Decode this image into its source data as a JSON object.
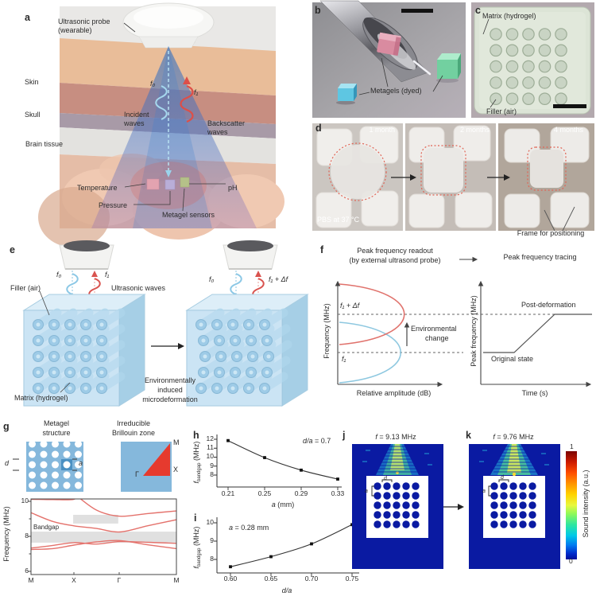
{
  "figure": {
    "panels": {
      "a": {
        "label": "a",
        "probe1": "Ultrasonic probe",
        "probe2": "(wearable)",
        "skin": "Skin",
        "skull": "Skull",
        "brain": "Brain tissue",
        "f0": "f₀",
        "f1": "f₁",
        "incident1": "Incident",
        "incident2": "waves",
        "backscatter1": "Backscatter",
        "backscatter2": "waves",
        "temperature": "Temperature",
        "pressure": "Pressure",
        "ph": "pH",
        "sensors": "Metagel sensors"
      },
      "b": {
        "label": "b",
        "metagels": "Metagels (dyed)"
      },
      "c": {
        "label": "c",
        "matrix": "Matrix (hydrogel)",
        "filler": "Filler (air)"
      },
      "d": {
        "label": "d",
        "months": [
          "1 month",
          "2 months",
          "4 months"
        ],
        "pbs": "PBS at 37 °C",
        "frame": "Frame for positioning"
      },
      "e": {
        "label": "e",
        "f0": "f₀",
        "f1": "f₁",
        "f0_2": "f₀",
        "f1df": "f₁ + Δf",
        "waves": "Ultrasonic waves",
        "filler": "Filler (air)",
        "matrix": "Matrix (hydrogel)",
        "env1": "Environmentally",
        "env2": "induced",
        "env3": "microdeformation"
      },
      "f": {
        "label": "f",
        "title1": "Peak frequency readout",
        "title2": "(by external ultrasond probe)",
        "title3": "Peak frequency tracing",
        "f1df": "f₁ + Δf",
        "f1": "f₁",
        "env1": "Environmental",
        "env2": "change",
        "ylab_left": "Frequency (MHz)",
        "xlab_left": "Relative amplitude (dB)",
        "ylab_right": "Peak frequency (MHz)",
        "xlab_right": "Time (s)",
        "post": "Post-deformation",
        "original": "Original state"
      },
      "g": {
        "label": "g",
        "t1a": "Metagel",
        "t1b": "structure",
        "t2a": "Irreducible",
        "t2b": "Brillouin zone",
        "d": "d",
        "a": "a",
        "M": "M",
        "X": "X",
        "gamma": "Γ",
        "bandgap": "Bandgap",
        "ylabel": "Frequency (MHz)",
        "yticks": [
          "10",
          "8",
          "6"
        ],
        "xticks": [
          "M",
          "X",
          "Γ",
          "M"
        ]
      },
      "h": {
        "label": "h",
        "ann_var": "d/a",
        "ann_rest": " = 0.7",
        "yticks": [
          "12",
          "11",
          "10",
          "9",
          "8"
        ],
        "xticks": [
          "0.21",
          "0.25",
          "0.29",
          "0.33"
        ],
        "xlab_var": "a",
        "xlab_rest": " (mm)",
        "ylab_f": "f",
        "ylab_sub": "bandgap",
        "ylab_rest": " (MHz)"
      },
      "i": {
        "label": "i",
        "ann_var": "a",
        "ann_rest": " = 0.28 mm",
        "yticks": [
          "10",
          "9",
          "8"
        ],
        "xticks": [
          "0.60",
          "0.65",
          "0.70",
          "0.75"
        ],
        "xlab": "d/a",
        "ylab_f": "f",
        "ylab_sub": "bandgap",
        "ylab_rest": " (MHz)"
      },
      "j": {
        "label": "j",
        "title_var": "f",
        "title_rest": " = 9.13 MHz",
        "d": "d",
        "a": "a"
      },
      "k": {
        "label": "k",
        "title_var": "f",
        "title_rest": " = 9.76 MHz",
        "d": "d",
        "a": "a"
      },
      "colorbar": {
        "max": "1",
        "min": "0",
        "label": "Sound intensity (a.u.)"
      }
    },
    "colors": {
      "band_red": "#e4726c",
      "navy": "#0a1aa2",
      "metagel_blue": "#85b8dc",
      "bz_red": "#e63a2e",
      "cone_blue": "#2f6fc0"
    }
  },
  "chart_data": [
    {
      "id": "g-band-structure",
      "type": "line",
      "panel": "g",
      "ylabel": "Frequency (MHz)",
      "ylim": [
        5.8,
        10.5
      ],
      "yticks": [
        6,
        8,
        10
      ],
      "x_path_labels": [
        "M",
        "X",
        "Γ",
        "M"
      ],
      "x_node_positions": [
        0,
        0.295,
        0.61,
        1
      ],
      "series": [
        {
          "name": "band1",
          "points": [
            [
              0,
              7.25
            ],
            [
              0.15,
              7.3
            ],
            [
              0.295,
              7.5
            ],
            [
              0.45,
              7.68
            ],
            [
              0.61,
              7.76
            ],
            [
              0.8,
              7.52
            ],
            [
              1,
              7.3
            ]
          ]
        },
        {
          "name": "band2",
          "points": [
            [
              0,
              7.33
            ],
            [
              0.15,
              7.48
            ],
            [
              0.295,
              7.64
            ],
            [
              0.45,
              7.56
            ],
            [
              0.61,
              7.7
            ],
            [
              0.8,
              7.66
            ],
            [
              1,
              7.6
            ]
          ]
        },
        {
          "name": "band3",
          "points": [
            [
              0,
              9.35
            ],
            [
              0.15,
              8.85
            ],
            [
              0.295,
              8.6
            ],
            [
              0.45,
              8.45
            ],
            [
              0.61,
              8.25
            ],
            [
              0.8,
              8.6
            ],
            [
              1,
              8.95
            ]
          ]
        },
        {
          "name": "band4",
          "points": [
            [
              0,
              10.12
            ],
            [
              0.15,
              10.1
            ],
            [
              0.295,
              10.12
            ],
            [
              0.34,
              10.5
            ]
          ]
        },
        {
          "name": "band5",
          "points": [
            [
              0.295,
              10.45
            ],
            [
              0.45,
              9.5
            ],
            [
              0.61,
              9.15
            ],
            [
              0.8,
              9.3
            ],
            [
              1,
              9.45
            ]
          ]
        },
        {
          "name": "band6",
          "points": [
            [
              0.78,
              10.5
            ],
            [
              0.9,
              10.28
            ],
            [
              1,
              10.15
            ]
          ]
        },
        {
          "name": "band7",
          "points": [
            [
              0.93,
              10.5
            ],
            [
              1,
              10.3
            ]
          ]
        }
      ],
      "bandgaps": [
        {
          "x": [
            0,
            1
          ],
          "mhz": [
            7.64,
            8.27
          ],
          "label": "Bandgap"
        },
        {
          "x": [
            0.29,
            0.6
          ],
          "mhz": [
            8.73,
            9.23
          ]
        }
      ]
    },
    {
      "id": "h-bandgap-vs-a",
      "type": "line",
      "panel": "h",
      "marker": "square",
      "xlabel": "a (mm)",
      "ylabel": "f_bandgap (MHz)",
      "annotation": "d/a = 0.7",
      "x": [
        0.21,
        0.25,
        0.29,
        0.33
      ],
      "y": [
        11.85,
        9.95,
        8.55,
        7.55
      ],
      "xticks": [
        0.21,
        0.25,
        0.29,
        0.33
      ],
      "yticks": [
        8,
        9,
        10,
        11,
        12
      ],
      "ylim": [
        7,
        12.5
      ]
    },
    {
      "id": "i-bandgap-vs-da",
      "type": "line",
      "panel": "i",
      "marker": "square",
      "xlabel": "d/a",
      "ylabel": "f_bandgap (MHz)",
      "annotation": "a = 0.28 mm",
      "x": [
        0.6,
        0.65,
        0.7,
        0.75
      ],
      "y": [
        7.6,
        8.15,
        8.85,
        9.9
      ],
      "xticks": [
        0.6,
        0.65,
        0.7,
        0.75
      ],
      "yticks": [
        8,
        9,
        10
      ],
      "ylim": [
        7.2,
        10.3
      ]
    },
    {
      "id": "f-left-schematic",
      "type": "line",
      "panel": "f",
      "schematic": true,
      "xlabel": "Relative amplitude (dB)",
      "ylabel": "Frequency (MHz)",
      "series": [
        {
          "name": "f₁ original resonance",
          "color": "#8ec8e0"
        },
        {
          "name": "f₁ + Δf shifted resonance",
          "color": "#e0726c"
        }
      ],
      "annotations": [
        "f₁ + Δf",
        "f₁",
        "Environmental change"
      ]
    },
    {
      "id": "f-right-schematic",
      "type": "line",
      "panel": "f",
      "schematic": true,
      "xlabel": "Time (s)",
      "ylabel": "Peak frequency (MHz)",
      "annotations": [
        "Post-deformation",
        "Original state"
      ]
    }
  ]
}
